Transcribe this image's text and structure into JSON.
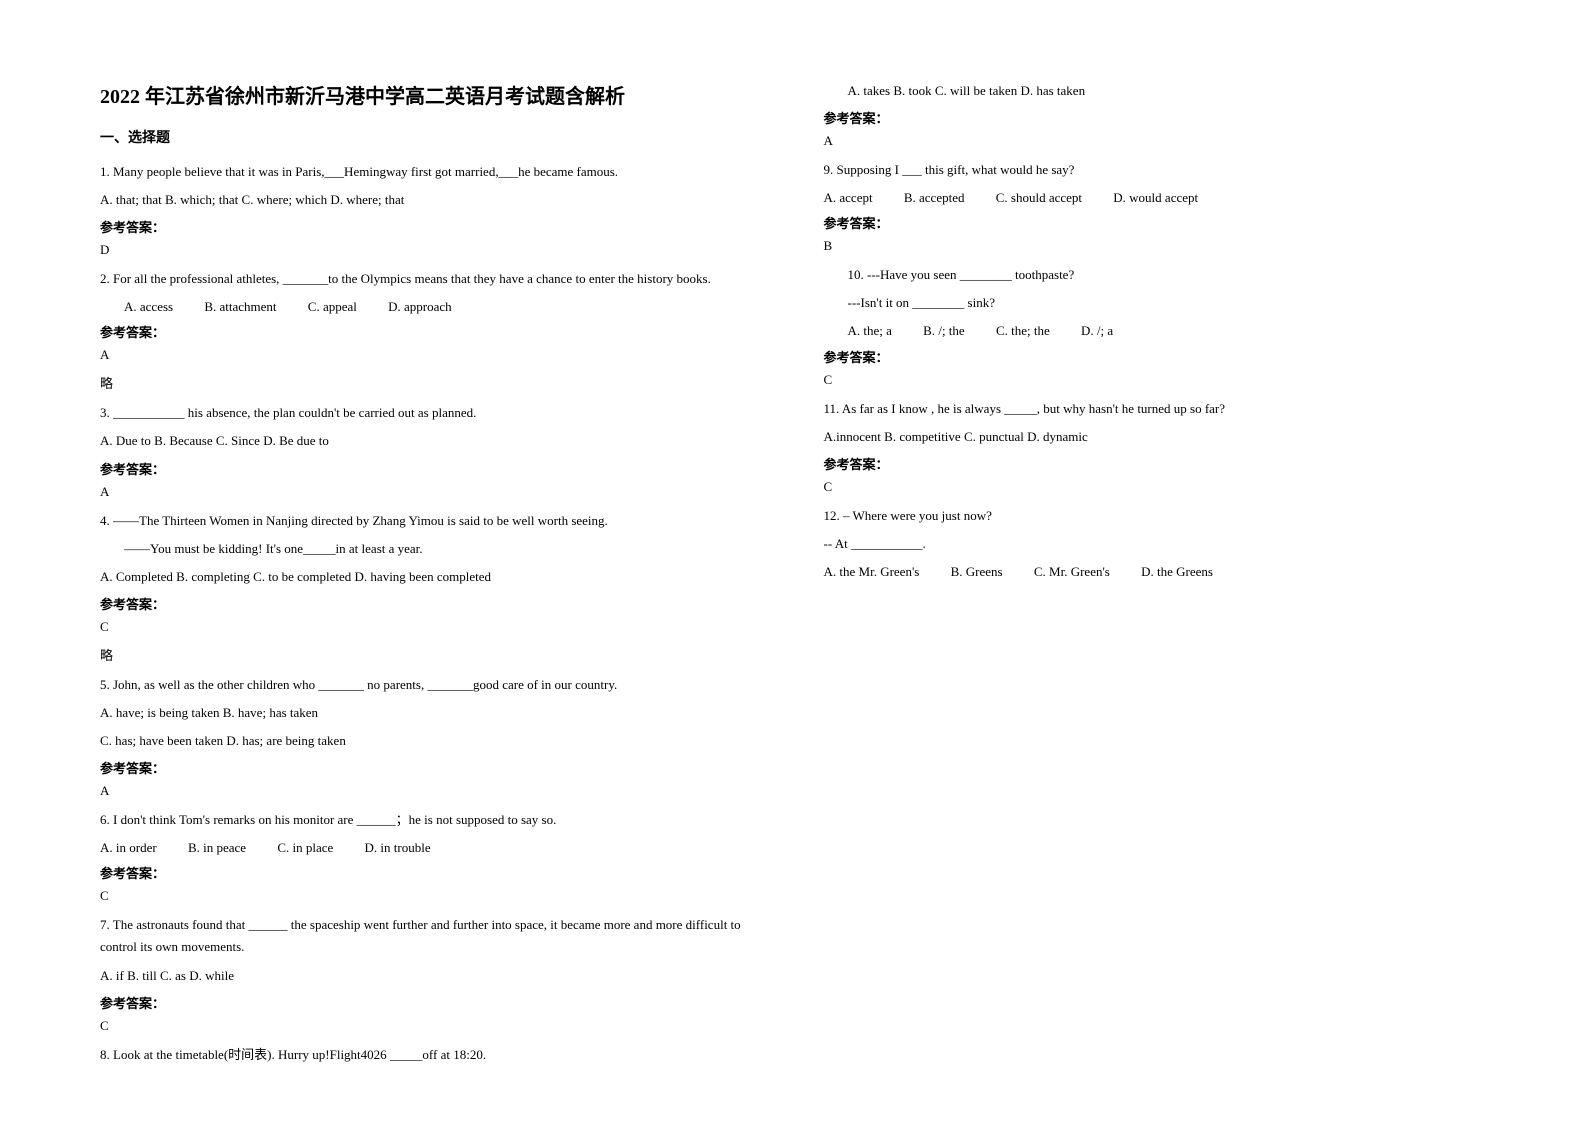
{
  "title": "2022 年江苏省徐州市新沂马港中学高二英语月考试题含解析",
  "section1": "一、选择题",
  "ansLabel": "参考答案：",
  "omit": "略",
  "q1": {
    "stem": "1. Many people believe that it was in Paris,___Hemingway first got married,___he became famous.",
    "opts": "A. that; that    B. which; that    C. where; which    D. where; that",
    "ans": "D"
  },
  "q2": {
    "stem": "2. For all the professional athletes, _______to the Olympics means that they have a chance to enter the history books.",
    "a": "A. access",
    "b": "B. attachment",
    "c": "C. appeal",
    "d": "D. approach",
    "ans": "A"
  },
  "q3": {
    "stem": "3. ___________ his absence, the plan couldn't be carried out as planned.",
    "opts": "A. Due to   B. Because   C. Since    D. Be due to",
    "ans": "A"
  },
  "q4": {
    "line1": "4. ——The Thirteen Women in Nanjing directed by Zhang Yimou is said to be well worth seeing.",
    "line2": "——You must be kidding! It's one_____in at least a year.",
    "opts": "A. Completed   B. completing      C. to be completed      D. having been completed",
    "ans": "C"
  },
  "q5": {
    "stem": "5.  John, as well as the other children who _______ no parents, _______good care of in our country.",
    "opt1": "A. have; is being taken      B. have; has taken",
    "opt2": "C. has; have been taken     D. has; are being taken",
    "ans": "A"
  },
  "q6": {
    "stem": "6. I don't think Tom's remarks on his monitor are ______；he is not supposed to say so.",
    "a": "A. in order",
    "b": "B. in peace",
    "c": "C. in place",
    "d": "D. in trouble",
    "ans": "C"
  },
  "q7": {
    "stem": "7. The astronauts found that ______ the spaceship went further and further into space, it became more and more difficult to control its own movements.",
    "opts": "A. if     B. till    C. as   D. while",
    "ans": "C"
  },
  "q8": {
    "stem": "8. Look at the timetable(时间表). Hurry up!Flight4026 _____off at 18:20.",
    "opts": "A. takes    B. took      C. will be taken    D. has taken",
    "ans": "A"
  },
  "q9": {
    "stem": "9. Supposing I ___ this gift, what would he say?",
    "a": "A. accept",
    "b": "B. accepted",
    "c": "C. should accept",
    "d": "D. would accept",
    "ans": "B"
  },
  "q10": {
    "line1": "10. ---Have you seen ________ toothpaste?",
    "line2": "---Isn't it on ________ sink?",
    "a": "A. the; a",
    "b": "B. /; the",
    "c": "C. the; the",
    "d": "D. /; a",
    "ans": "C"
  },
  "q11": {
    "stem": "11. As far as I know , he is always _____, but why hasn't he turned up so far?",
    "opts": "A.innocent      B. competitive    C. punctual    D. dynamic",
    "ans": "C"
  },
  "q12": {
    "line1": "12.  – Where were you just now?",
    "line2": "-- At ___________.",
    "a": "A. the Mr. Green's",
    "b": "B. Greens",
    "c": "C. Mr. Green's",
    "d": "D. the Greens"
  }
}
